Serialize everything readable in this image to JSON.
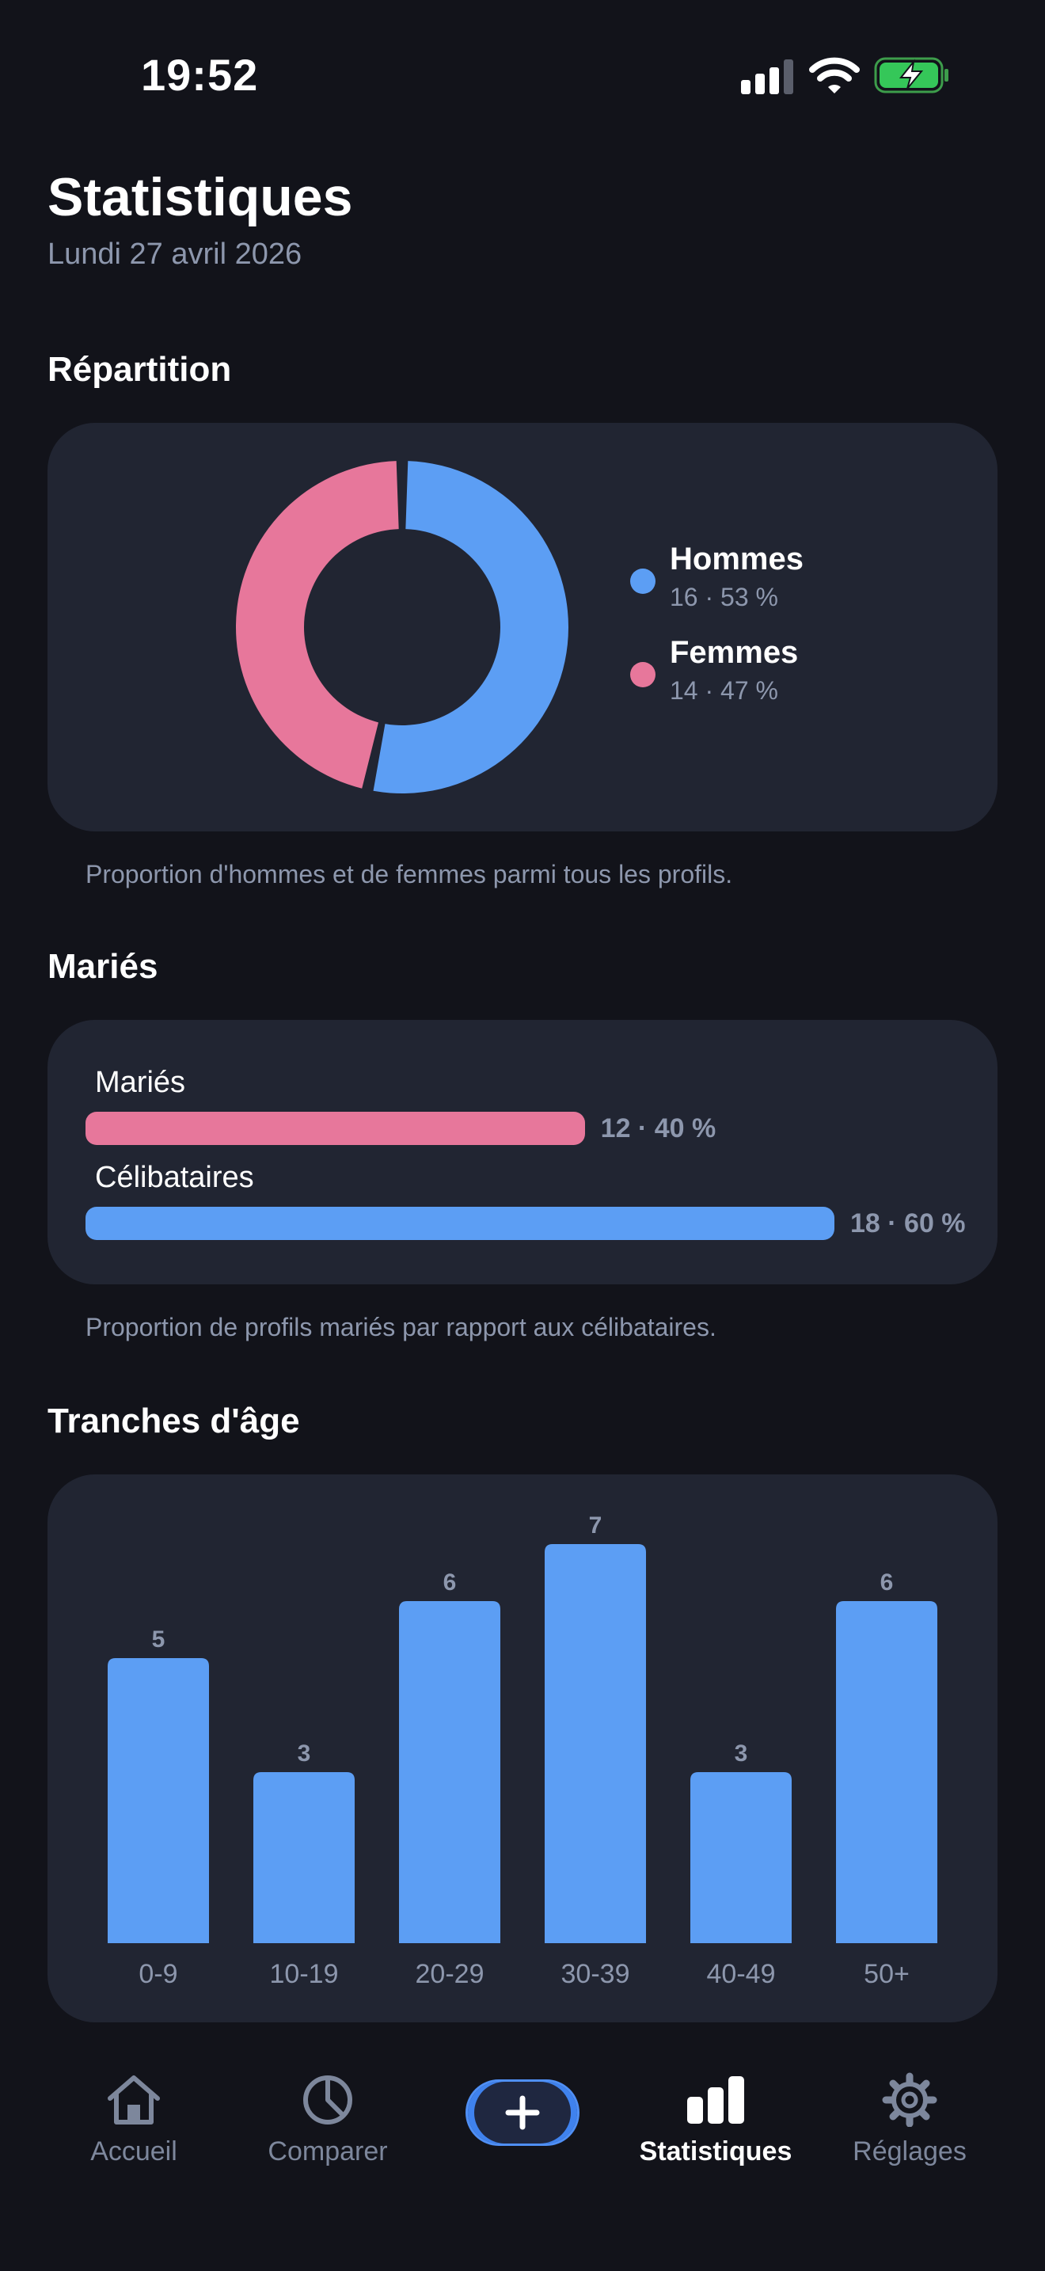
{
  "status_bar": {
    "time": "19:52"
  },
  "header": {
    "title": "Statistiques",
    "date": "Lundi 27 avril 2026"
  },
  "colors": {
    "blue": "#5c9ef4",
    "pink": "#e7779b",
    "card": "#212532",
    "background": "#12131a"
  },
  "repartition": {
    "title": "Répartition",
    "caption": "Proportion d'hommes et de femmes parmi tous les profils.",
    "legend": [
      {
        "name": "Hommes",
        "detail": "16 · 53 %",
        "color": "#5c9ef4"
      },
      {
        "name": "Femmes",
        "detail": "14 · 47 %",
        "color": "#e7779b"
      }
    ]
  },
  "maries": {
    "title": "Mariés",
    "caption": "Proportion de profils mariés par rapport aux célibataires.",
    "rows": [
      {
        "label": "Mariés",
        "value": "12 · 40 %"
      },
      {
        "label": "Célibataires",
        "value": "18 · 60 %"
      }
    ]
  },
  "age": {
    "title": "Tranches d'âge"
  },
  "chart_data": [
    {
      "type": "pie",
      "categories": [
        "Hommes",
        "Femmes"
      ],
      "values": [
        16,
        14
      ],
      "percentages": [
        53,
        47
      ],
      "colors": [
        "#5c9ef4",
        "#e7779b"
      ],
      "donut": true
    },
    {
      "type": "bar",
      "orientation": "horizontal",
      "categories": [
        "Mariés",
        "Célibataires"
      ],
      "values": [
        12,
        18
      ],
      "percentages": [
        40,
        60
      ],
      "colors": [
        "#e7779b",
        "#5c9ef4"
      ]
    },
    {
      "type": "bar",
      "categories": [
        "0-9",
        "10-19",
        "20-29",
        "30-39",
        "40-49",
        "50+"
      ],
      "values": [
        5,
        3,
        6,
        7,
        3,
        6
      ],
      "color": "#5c9ef4",
      "ylim": [
        0,
        7
      ],
      "grid": false
    }
  ],
  "tab_bar": {
    "tabs": [
      {
        "label": "Accueil",
        "icon": "home-icon"
      },
      {
        "label": "Comparer",
        "icon": "pie-chart-icon"
      },
      {
        "label": "Statistiques",
        "icon": "bar-chart-icon",
        "active": true
      },
      {
        "label": "Réglages",
        "icon": "gear-icon"
      }
    ],
    "add_icon": "plus-icon"
  }
}
